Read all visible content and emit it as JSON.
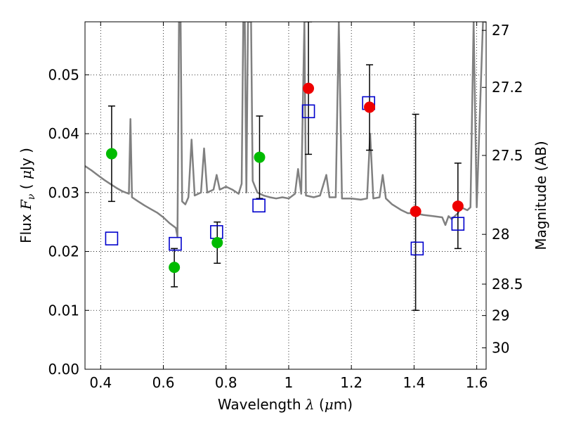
{
  "chart_data": {
    "type": "scatter",
    "xlabel": {
      "prefix": "Wavelength  ",
      "symbol": "λ",
      "unit_open": " (",
      "unit_mu": "μ",
      "unit_rest": "m)"
    },
    "ylabel": {
      "prefix": "Flux  ",
      "symbol": "F",
      "sub": "ν",
      "unit_open": "  ( ",
      "unit_mu": "μ",
      "unit_rest": "Jy )"
    },
    "ylabel_right": "Magnitude (AB)",
    "xlim": [
      0.35,
      1.63
    ],
    "ylim": [
      0.0,
      0.059
    ],
    "grid": true,
    "x_ticks": [
      {
        "value": 0.4,
        "label": "0.4"
      },
      {
        "value": 0.6,
        "label": "0.6"
      },
      {
        "value": 0.8,
        "label": "0.8"
      },
      {
        "value": 1.0,
        "label": "1"
      },
      {
        "value": 1.2,
        "label": "1.2"
      },
      {
        "value": 1.4,
        "label": "1.4"
      },
      {
        "value": 1.6,
        "label": "1.6"
      }
    ],
    "y_ticks": [
      {
        "value": 0.0,
        "label": "0.00"
      },
      {
        "value": 0.01,
        "label": "0.01"
      },
      {
        "value": 0.02,
        "label": "0.02"
      },
      {
        "value": 0.03,
        "label": "0.03"
      },
      {
        "value": 0.04,
        "label": "0.04"
      },
      {
        "value": 0.05,
        "label": "0.05"
      }
    ],
    "mag_ticks": [
      {
        "mag": 27,
        "label": "27"
      },
      {
        "mag": 27.2,
        "label": "27.2"
      },
      {
        "mag": 27.5,
        "label": "27.5"
      },
      {
        "mag": 28,
        "label": "28"
      },
      {
        "mag": 28.5,
        "label": "28.5"
      },
      {
        "mag": 29,
        "label": "29"
      },
      {
        "mag": 30,
        "label": "30"
      }
    ],
    "colors": {
      "sed": "#808080",
      "green": "#00bb00",
      "red": "#ee0000",
      "model": "#0000cc",
      "errorbar": "#000000",
      "grid": "#000000"
    },
    "model_spectrum": [
      [
        0.35,
        0.0345
      ],
      [
        0.37,
        0.0338
      ],
      [
        0.39,
        0.033
      ],
      [
        0.41,
        0.0322
      ],
      [
        0.43,
        0.0315
      ],
      [
        0.45,
        0.0308
      ],
      [
        0.47,
        0.0302
      ],
      [
        0.49,
        0.0298
      ],
      [
        0.495,
        0.0425
      ],
      [
        0.5,
        0.0292
      ],
      [
        0.52,
        0.0285
      ],
      [
        0.54,
        0.0278
      ],
      [
        0.56,
        0.0272
      ],
      [
        0.58,
        0.0266
      ],
      [
        0.6,
        0.0258
      ],
      [
        0.62,
        0.0248
      ],
      [
        0.64,
        0.024
      ],
      [
        0.645,
        0.0225
      ],
      [
        0.65,
        0.059
      ],
      [
        0.655,
        0.059
      ],
      [
        0.66,
        0.0285
      ],
      [
        0.67,
        0.028
      ],
      [
        0.68,
        0.0292
      ],
      [
        0.69,
        0.039
      ],
      [
        0.7,
        0.0295
      ],
      [
        0.72,
        0.03
      ],
      [
        0.73,
        0.0375
      ],
      [
        0.74,
        0.03
      ],
      [
        0.76,
        0.0305
      ],
      [
        0.77,
        0.033
      ],
      [
        0.78,
        0.0305
      ],
      [
        0.8,
        0.031
      ],
      [
        0.82,
        0.0305
      ],
      [
        0.84,
        0.0298
      ],
      [
        0.85,
        0.0315
      ],
      [
        0.855,
        0.059
      ],
      [
        0.86,
        0.059
      ],
      [
        0.865,
        0.03
      ],
      [
        0.87,
        0.059
      ],
      [
        0.875,
        0.059
      ],
      [
        0.88,
        0.059
      ],
      [
        0.885,
        0.032
      ],
      [
        0.9,
        0.03
      ],
      [
        0.92,
        0.0295
      ],
      [
        0.94,
        0.0292
      ],
      [
        0.96,
        0.029
      ],
      [
        0.98,
        0.0292
      ],
      [
        1.0,
        0.029
      ],
      [
        1.02,
        0.0298
      ],
      [
        1.03,
        0.034
      ],
      [
        1.04,
        0.0298
      ],
      [
        1.05,
        0.059
      ],
      [
        1.055,
        0.0295
      ],
      [
        1.08,
        0.0292
      ],
      [
        1.1,
        0.0295
      ],
      [
        1.12,
        0.033
      ],
      [
        1.13,
        0.0292
      ],
      [
        1.15,
        0.0292
      ],
      [
        1.16,
        0.059
      ],
      [
        1.17,
        0.029
      ],
      [
        1.2,
        0.029
      ],
      [
        1.23,
        0.0288
      ],
      [
        1.25,
        0.029
      ],
      [
        1.26,
        0.04
      ],
      [
        1.27,
        0.029
      ],
      [
        1.29,
        0.0292
      ],
      [
        1.3,
        0.033
      ],
      [
        1.31,
        0.029
      ],
      [
        1.33,
        0.028
      ],
      [
        1.36,
        0.027
      ],
      [
        1.38,
        0.0265
      ],
      [
        1.4,
        0.0265
      ],
      [
        1.43,
        0.0262
      ],
      [
        1.46,
        0.026
      ],
      [
        1.49,
        0.0258
      ],
      [
        1.5,
        0.0245
      ],
      [
        1.51,
        0.026
      ],
      [
        1.52,
        0.0255
      ],
      [
        1.54,
        0.0265
      ],
      [
        1.55,
        0.0275
      ],
      [
        1.57,
        0.027
      ],
      [
        1.58,
        0.0275
      ],
      [
        1.59,
        0.059
      ],
      [
        1.6,
        0.0275
      ],
      [
        1.62,
        0.059
      ],
      [
        1.63,
        0.059
      ]
    ],
    "green_points": [
      {
        "x": 0.435,
        "y": 0.0366,
        "yerr_low": 0.0285,
        "yerr_high": 0.0447
      },
      {
        "x": 0.635,
        "y": 0.0173,
        "yerr_low": 0.014,
        "yerr_high": 0.0205
      },
      {
        "x": 0.772,
        "y": 0.0215,
        "yerr_low": 0.018,
        "yerr_high": 0.025
      },
      {
        "x": 0.907,
        "y": 0.036,
        "yerr_low": 0.029,
        "yerr_high": 0.043
      }
    ],
    "red_points": [
      {
        "x": 1.063,
        "y": 0.0477,
        "yerr_low": 0.0365,
        "yerr_high": 0.059
      },
      {
        "x": 1.258,
        "y": 0.0445,
        "yerr_low": 0.0372,
        "yerr_high": 0.0517
      },
      {
        "x": 1.405,
        "y": 0.0268,
        "yerr_low": 0.01,
        "yerr_high": 0.0433
      },
      {
        "x": 1.54,
        "y": 0.0277,
        "yerr_low": 0.0205,
        "yerr_high": 0.035
      }
    ],
    "model_photometry": [
      {
        "x": 0.435,
        "y": 0.0222
      },
      {
        "x": 0.638,
        "y": 0.0213
      },
      {
        "x": 0.77,
        "y": 0.0233
      },
      {
        "x": 0.905,
        "y": 0.0278
      },
      {
        "x": 1.063,
        "y": 0.0438
      },
      {
        "x": 1.255,
        "y": 0.0452
      },
      {
        "x": 1.41,
        "y": 0.0205
      },
      {
        "x": 1.54,
        "y": 0.0247
      }
    ]
  }
}
